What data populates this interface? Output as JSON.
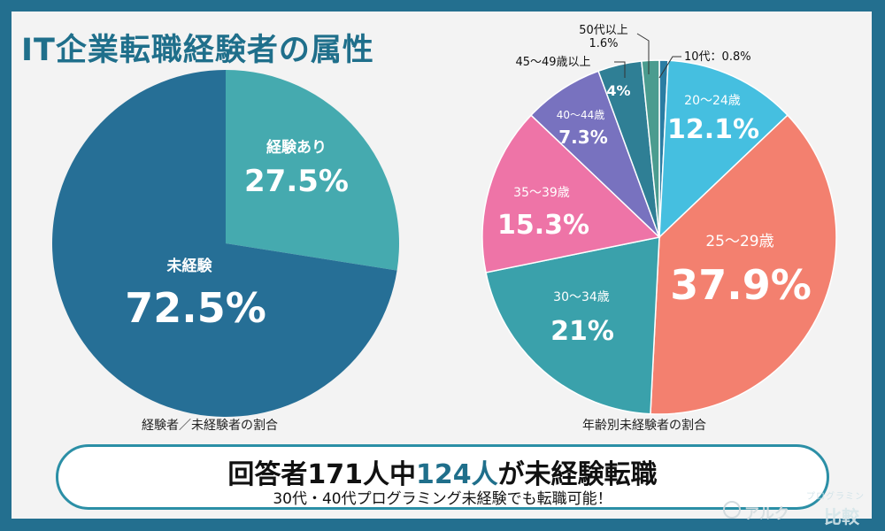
{
  "page_title": "IT企業転職経験者の属性",
  "chart_data": [
    {
      "type": "pie",
      "caption": "経験者／未経験者の割合",
      "slices": [
        {
          "label": "経験あり",
          "value": 27.5,
          "display": "27.5%",
          "color": "#45aaaf"
        },
        {
          "label": "未経験",
          "value": 72.5,
          "display": "72.5%",
          "color": "#266f96"
        }
      ]
    },
    {
      "type": "pie",
      "caption": "年齢別未経験者の割合",
      "slices": [
        {
          "label": "10代：0.8%",
          "value": 0.8,
          "display": "",
          "color": "#2a7da3"
        },
        {
          "label": "20〜24歳",
          "value": 12.1,
          "display": "12.1%",
          "color": "#45bfe0"
        },
        {
          "label": "25〜29歳",
          "value": 37.9,
          "display": "37.9%",
          "color": "#f3806f"
        },
        {
          "label": "30〜34歳",
          "value": 21,
          "display": "21%",
          "color": "#3aa1ab"
        },
        {
          "label": "35〜39歳",
          "value": 15.3,
          "display": "15.3%",
          "color": "#ee74a7"
        },
        {
          "label": "40〜44歳",
          "value": 7.3,
          "display": "7.3%",
          "color": "#7872bf"
        },
        {
          "label": "45〜49歳以上",
          "value": 4,
          "display": "4%",
          "color": "#2f7f95"
        },
        {
          "label": "50代以上",
          "value": 1.6,
          "display": "1.6%",
          "color": "#4b9c8f"
        }
      ]
    }
  ],
  "banner": {
    "headline_pre": "回答者171人中",
    "headline_highlight": "124人",
    "headline_post": "が未経験転職",
    "subline": "30代・40代プログラミング未経験でも転職可能！"
  },
  "brand": {
    "name": "アルク",
    "sub": "プログラミン",
    "sub2": "比較"
  }
}
